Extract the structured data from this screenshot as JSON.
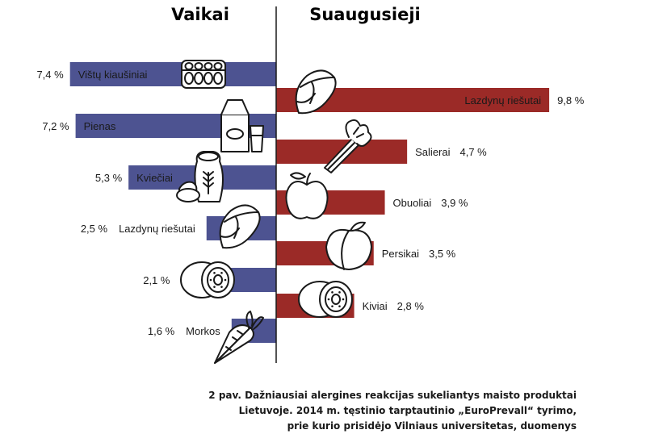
{
  "chart_data": {
    "type": "bar",
    "layout": "butterfly",
    "colors": {
      "children": "#4d5391",
      "adults": "#9b2a27"
    },
    "left": {
      "title": "Vaikai",
      "categories": [
        "Vištų kiaušiniai",
        "Pienas",
        "Kviečiai",
        "Lazdynų riešutai",
        "Kiviai",
        "Morkos"
      ],
      "values": [
        7.4,
        7.2,
        5.3,
        2.5,
        2.1,
        1.6
      ],
      "value_labels": [
        "7,4 %",
        "7,2 %",
        "5,3 %",
        "2,5 %",
        "2,1 %",
        "1,6 %"
      ],
      "icons": [
        "egg-carton-icon",
        "milk-carton-icon",
        "wheat-bag-icon",
        "hazelnut-icon",
        "kiwi-icon",
        "carrot-icon"
      ]
    },
    "right": {
      "title": "Suaugusieji",
      "categories": [
        "Lazdynų riešutai",
        "Salierai",
        "Obuoliai",
        "Persikai",
        "Kiviai"
      ],
      "values": [
        9.8,
        4.7,
        3.9,
        3.5,
        2.8
      ],
      "value_labels": [
        "9,8 %",
        "4,7 %",
        "3,9 %",
        "3,5 %",
        "2,8 %"
      ],
      "icons": [
        "hazelnut-icon",
        "celery-icon",
        "apple-icon",
        "peach-icon",
        "kiwi-icon"
      ]
    }
  },
  "caption": {
    "line1": "2 pav. Dažniausiai alergines reakcijas sukeliantys maisto produktai",
    "line2": "Lietuvoje. 2014 m. tęstinio tarptautinio „EuroPrevall“ tyrimo,",
    "line3": "prie kurio prisidėjo Vilniaus universitetas, duomenys"
  }
}
